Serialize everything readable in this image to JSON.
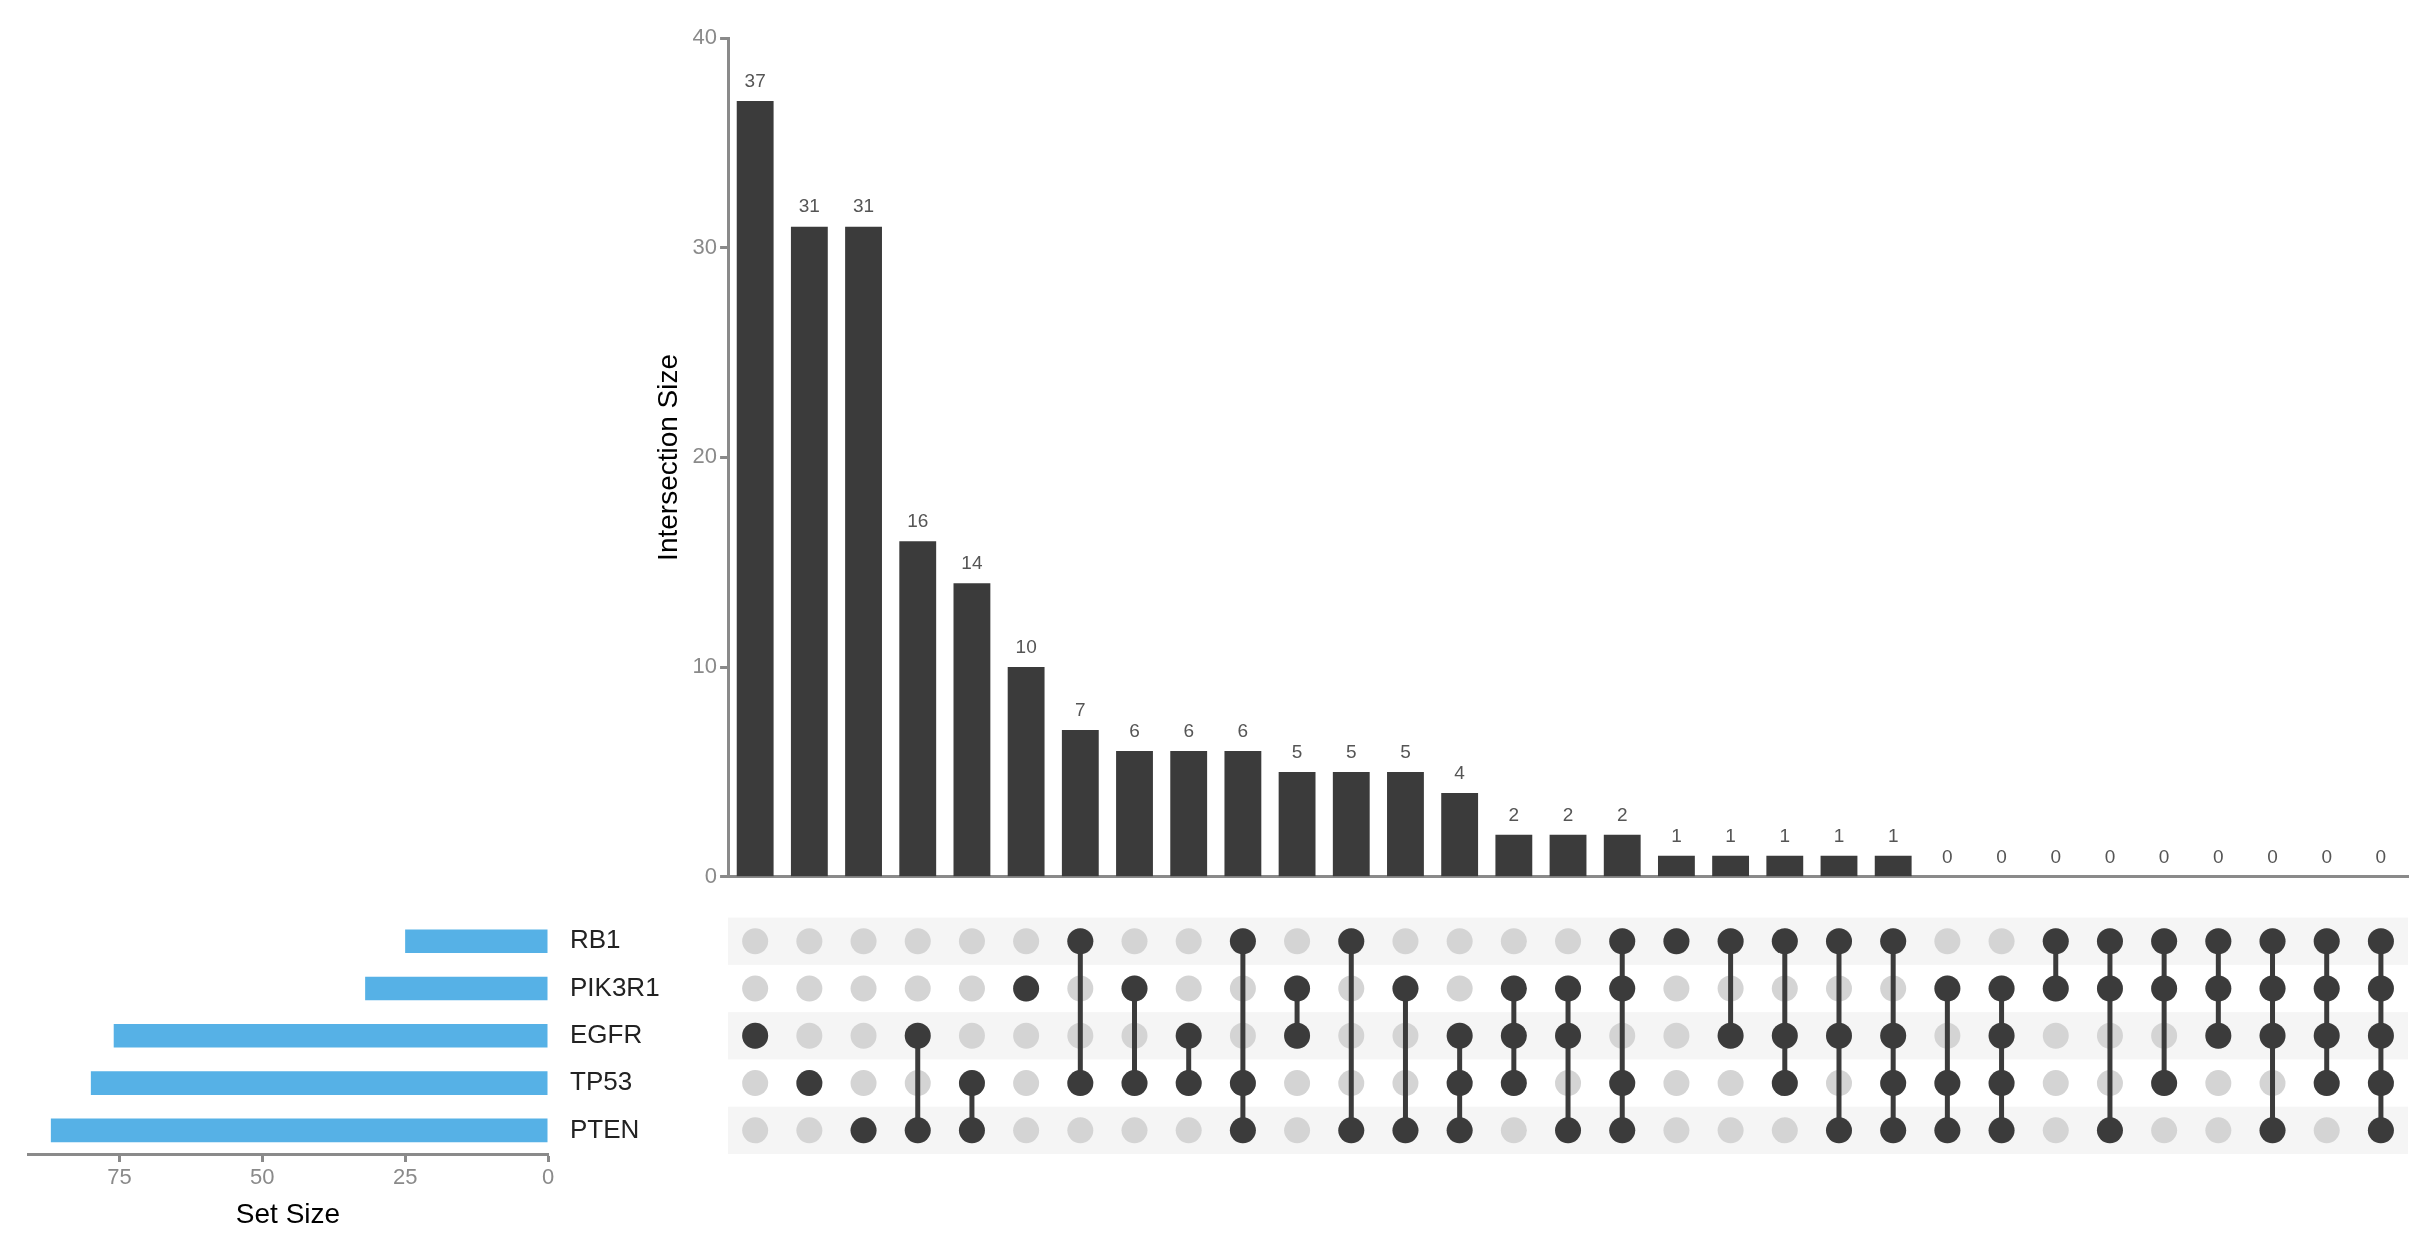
{
  "chart_data": [
    {
      "type": "bar",
      "categories": [
        null,
        null,
        null,
        null,
        null,
        null,
        null,
        null,
        null,
        null,
        null,
        null,
        null,
        null,
        null,
        null,
        null,
        null,
        null,
        null,
        null,
        null,
        null,
        null,
        null,
        null,
        null,
        null,
        null,
        null,
        null
      ],
      "values": [
        37,
        31,
        31,
        16,
        14,
        10,
        7,
        6,
        6,
        6,
        5,
        5,
        5,
        4,
        2,
        2,
        2,
        1,
        1,
        1,
        1,
        1,
        0,
        0,
        0,
        0,
        0,
        0,
        0,
        0,
        0
      ],
      "color": "#3b3b3b",
      "ylim": [
        0,
        40
      ],
      "yticks": [
        0,
        10,
        20,
        30,
        40
      ],
      "ylabel": "Intersection Size",
      "data_labels": true,
      "tick_labels": "y"
    },
    {
      "type": "bar",
      "orientation": "horizontal",
      "categories": [
        "RB1",
        "PIK3R1",
        "EGFR",
        "TP53",
        "PTEN"
      ],
      "values": [
        25,
        32,
        76,
        80,
        87
      ],
      "color": "#56b1e6",
      "xlim": [
        91,
        0
      ],
      "xticks": [
        0,
        25,
        50,
        75
      ],
      "xlabel": "Set Size"
    }
  ]
}
